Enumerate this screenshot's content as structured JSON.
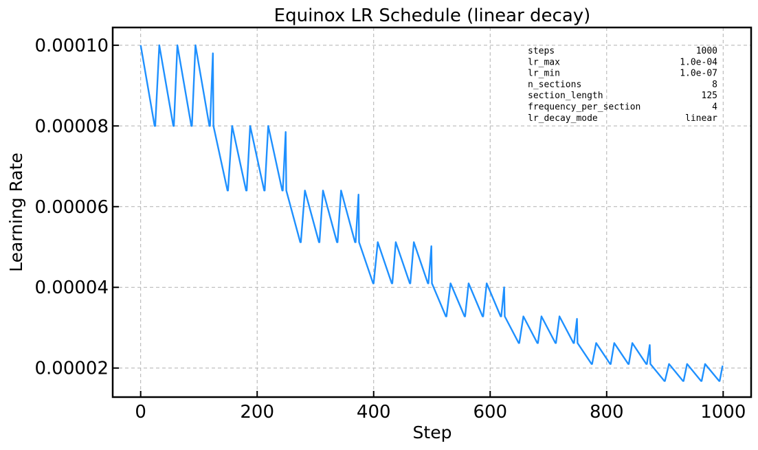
{
  "chart_data": {
    "type": "line",
    "title": "Equinox LR Schedule (linear decay)",
    "xlabel": "Step",
    "ylabel": "Learning Rate",
    "xlim": [
      -48,
      1048
    ],
    "ylim": [
      1.28e-05,
      0.0001044
    ],
    "xticks": [
      0,
      200,
      400,
      600,
      800,
      1000
    ],
    "xtick_labels": [
      "0",
      "200",
      "400",
      "600",
      "800",
      "1000"
    ],
    "yticks": [
      2e-05,
      4e-05,
      6e-05,
      8e-05,
      0.0001
    ],
    "ytick_labels": [
      "0.00002",
      "0.00004",
      "0.00006",
      "0.00008",
      "0.00010"
    ],
    "grid": true,
    "series": [
      {
        "color": "#1e90ff",
        "x": [
          0,
          24,
          25,
          32,
          56,
          57,
          63,
          87,
          88,
          94,
          118,
          119,
          124,
          125,
          149,
          150,
          157,
          181,
          182,
          188,
          212,
          213,
          219,
          243,
          244,
          249,
          250,
          274,
          275,
          282,
          306,
          307,
          313,
          337,
          338,
          344,
          368,
          369,
          374,
          375,
          399,
          400,
          407,
          431,
          432,
          438,
          462,
          463,
          469,
          493,
          494,
          499,
          500,
          524,
          525,
          532,
          556,
          557,
          563,
          587,
          588,
          594,
          618,
          619,
          624,
          625,
          649,
          650,
          657,
          681,
          682,
          688,
          712,
          713,
          719,
          743,
          744,
          749,
          750,
          774,
          775,
          782,
          806,
          807,
          813,
          837,
          838,
          844,
          868,
          869,
          874,
          875,
          899,
          900,
          907,
          931,
          932,
          938,
          962,
          963,
          969,
          993,
          994,
          999
        ],
        "y": [
          0.0001,
          8e-05,
          8e-05,
          0.0001,
          8e-05,
          8e-05,
          0.0001,
          8e-05,
          8e-05,
          0.0001,
          8e-05,
          8e-05,
          9.8e-05,
          8e-05,
          6.4e-05,
          6.4e-05,
          8e-05,
          6.4e-05,
          6.4e-05,
          8e-05,
          6.4e-05,
          6.4e-05,
          8e-05,
          6.4e-05,
          6.4e-05,
          7.85e-05,
          6.4e-05,
          5.12e-05,
          5.12e-05,
          6.4e-05,
          5.12e-05,
          5.12e-05,
          6.4e-05,
          5.12e-05,
          5.12e-05,
          6.4e-05,
          5.12e-05,
          5.12e-05,
          6.3e-05,
          5.12e-05,
          4.1e-05,
          4.1e-05,
          5.12e-05,
          4.1e-05,
          4.1e-05,
          5.12e-05,
          4.1e-05,
          4.1e-05,
          5.12e-05,
          4.1e-05,
          4.1e-05,
          5.02e-05,
          4.1e-05,
          3.28e-05,
          3.28e-05,
          4.1e-05,
          3.28e-05,
          3.28e-05,
          4.1e-05,
          3.28e-05,
          3.28e-05,
          4.1e-05,
          3.28e-05,
          3.28e-05,
          4e-05,
          3.28e-05,
          2.62e-05,
          2.62e-05,
          3.28e-05,
          2.62e-05,
          2.62e-05,
          3.28e-05,
          2.62e-05,
          2.62e-05,
          3.28e-05,
          2.62e-05,
          2.62e-05,
          3.22e-05,
          2.62e-05,
          2.1e-05,
          2.1e-05,
          2.62e-05,
          2.1e-05,
          2.1e-05,
          2.62e-05,
          2.1e-05,
          2.1e-05,
          2.62e-05,
          2.1e-05,
          2.1e-05,
          2.57e-05,
          2.1e-05,
          1.68e-05,
          1.68e-05,
          2.1e-05,
          1.68e-05,
          1.68e-05,
          2.1e-05,
          1.68e-05,
          1.68e-05,
          2.1e-05,
          1.68e-05,
          1.68e-05,
          2.06e-05
        ]
      }
    ]
  },
  "info_box": [
    {
      "key": "steps",
      "value": "1000"
    },
    {
      "key": "lr_max",
      "value": "1.0e-04"
    },
    {
      "key": "lr_min",
      "value": "1.0e-07"
    },
    {
      "key": "n_sections",
      "value": "8"
    },
    {
      "key": "section_length",
      "value": "125"
    },
    {
      "key": "frequency_per_section",
      "value": "4"
    },
    {
      "key": "lr_decay_mode",
      "value": "linear"
    }
  ]
}
